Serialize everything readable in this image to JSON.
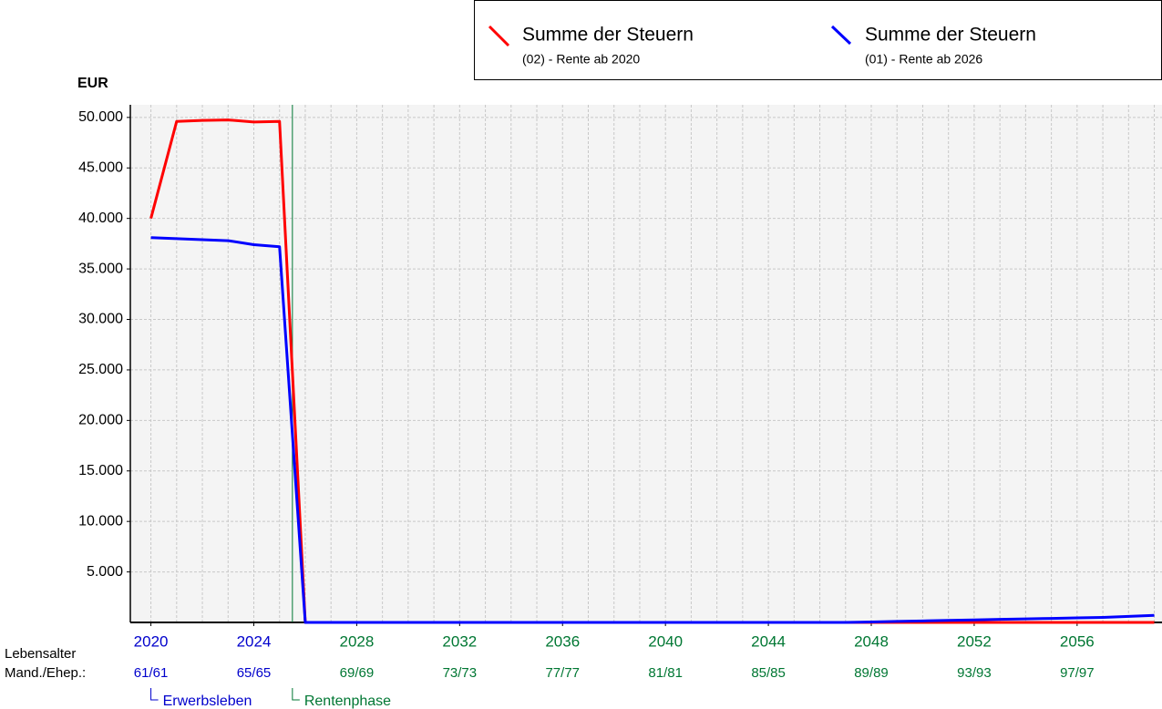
{
  "chart_data": {
    "type": "line",
    "y_axis_label": "EUR",
    "x": [
      2020,
      2021,
      2022,
      2023,
      2024,
      2025,
      2026,
      2027,
      2028,
      2029,
      2030,
      2031,
      2032,
      2033,
      2034,
      2035,
      2036,
      2037,
      2038,
      2039,
      2040,
      2041,
      2042,
      2043,
      2044,
      2045,
      2046,
      2047,
      2048,
      2049,
      2050,
      2051,
      2052,
      2053,
      2054,
      2055,
      2056,
      2057,
      2058,
      2059
    ],
    "series": [
      {
        "name": "Summe der Steuern",
        "subtitle": "(02) - Rente ab 2020",
        "color": "#ff0000",
        "values": [
          40000,
          49600,
          49700,
          49750,
          49550,
          49600,
          0,
          0,
          0,
          0,
          0,
          0,
          0,
          0,
          0,
          0,
          0,
          0,
          0,
          0,
          0,
          0,
          0,
          0,
          0,
          0,
          0,
          0,
          0,
          0,
          0,
          0,
          0,
          0,
          0,
          0,
          0,
          0,
          0,
          0
        ]
      },
      {
        "name": "Summe der Steuern",
        "subtitle": "(01) - Rente ab 2026",
        "color": "#0000ff",
        "values": [
          38100,
          38000,
          37900,
          37800,
          37400,
          37200,
          0,
          0,
          0,
          0,
          0,
          0,
          0,
          0,
          0,
          0,
          0,
          0,
          0,
          0,
          0,
          0,
          0,
          0,
          0,
          0,
          0,
          0,
          50,
          100,
          150,
          200,
          250,
          300,
          350,
          400,
          450,
          500,
          600,
          700
        ]
      }
    ],
    "xlim": [
      2019.2,
      2059.3
    ],
    "xticks": [
      2020,
      2024,
      2028,
      2032,
      2036,
      2040,
      2044,
      2048,
      2052,
      2056
    ],
    "age_row_labels": [
      "Lebensalter",
      "Mand./Ehep.:"
    ],
    "age_labels": [
      "61/61",
      "65/65",
      "69/69",
      "73/73",
      "77/77",
      "81/81",
      "85/85",
      "89/89",
      "93/93",
      "97/97"
    ],
    "phase_boundary": 2025.5,
    "phases": [
      {
        "label": "Erwerbsleben",
        "color": "#0000cc"
      },
      {
        "label": "Rentenphase",
        "color": "#007733"
      }
    ],
    "ylim": [
      0,
      51250
    ],
    "yticks": [
      {
        "value": 5000,
        "label": "5.000"
      },
      {
        "value": 10000,
        "label": "10.000"
      },
      {
        "value": 15000,
        "label": "15.000"
      },
      {
        "value": 20000,
        "label": "20.000"
      },
      {
        "value": 25000,
        "label": "25.000"
      },
      {
        "value": 30000,
        "label": "30.000"
      },
      {
        "value": 35000,
        "label": "35.000"
      },
      {
        "value": 40000,
        "label": "40.000"
      },
      {
        "value": 45000,
        "label": "45.000"
      },
      {
        "value": 50000,
        "label": "50.000"
      }
    ],
    "grid": true
  }
}
